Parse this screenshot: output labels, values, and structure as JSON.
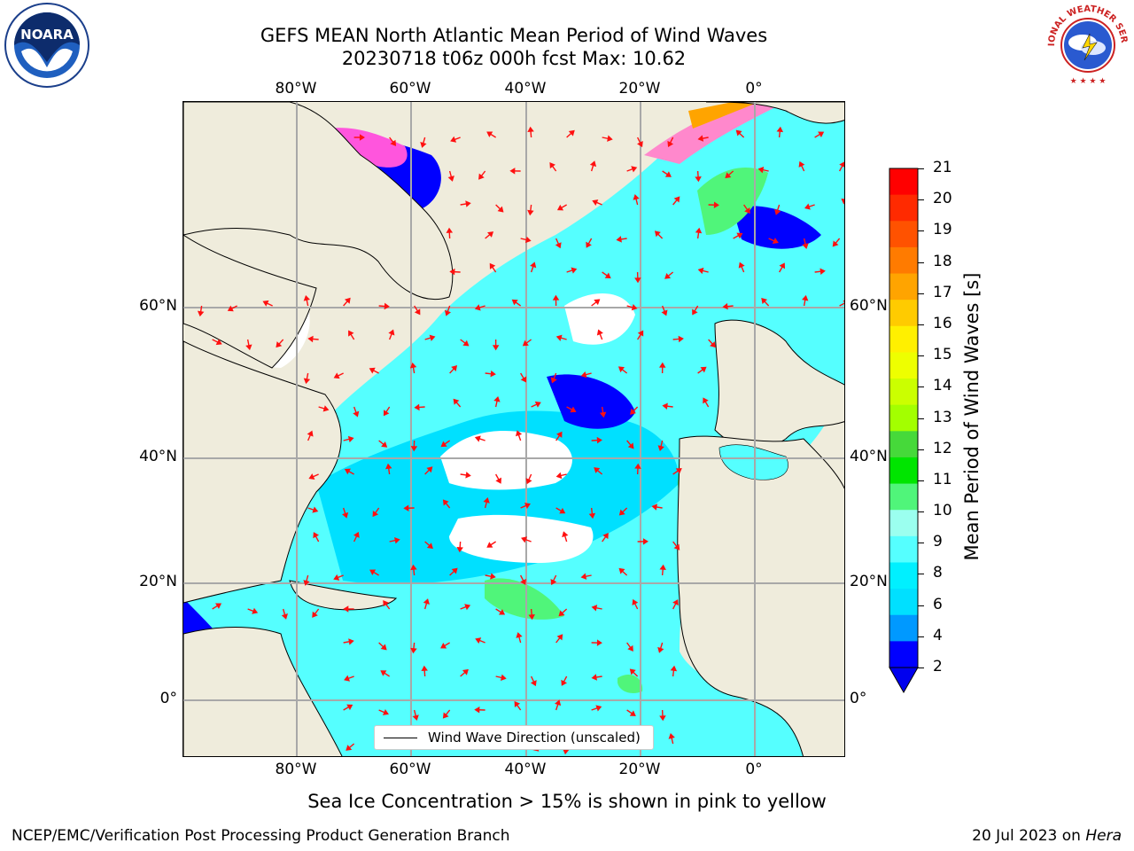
{
  "title": {
    "line1": "GEFS MEAN North Atlantic Mean Period of Wind Waves",
    "line2": "20230718 t06z 000h fcst   Max: 10.62"
  },
  "logos": {
    "left": {
      "name": "noaa-logo",
      "text": "NOARA"
    },
    "right": {
      "name": "nws-logo",
      "text": "NATIONAL WEATHER SERVICE"
    }
  },
  "axes": {
    "lon_ticks": [
      "80°W",
      "60°W",
      "40°W",
      "20°W",
      "0°"
    ],
    "lat_ticks": [
      "60°N",
      "40°N",
      "20°N",
      "0°"
    ]
  },
  "legend": {
    "label": "Wind Wave Direction (unscaled)"
  },
  "colorbar": {
    "label": "Mean Period of Wind Waves [s]",
    "ticks": [
      "21",
      "20",
      "19",
      "18",
      "17",
      "16",
      "15",
      "14",
      "13",
      "12",
      "11",
      "10",
      "9",
      "8",
      "6",
      "4",
      "2"
    ],
    "colors": [
      "#ff0000",
      "#ff2a00",
      "#ff5200",
      "#ff7b00",
      "#ffa400",
      "#ffcb00",
      "#fff000",
      "#eeff00",
      "#cbff00",
      "#a3ff00",
      "#46d93a",
      "#00e500",
      "#50f57a",
      "#9bffef",
      "#55ffff",
      "#00f0ff",
      "#00e0ff",
      "#0099ff",
      "#0000ff"
    ],
    "extend_color": "#0000ee"
  },
  "caption": "Sea Ice Concentration > 15% is shown in pink to yellow",
  "footer": {
    "left": "NCEP/EMC/Verification Post Processing Product Generation Branch",
    "right_prefix": "20 Jul 2023 on ",
    "right_host": "Hera"
  }
}
